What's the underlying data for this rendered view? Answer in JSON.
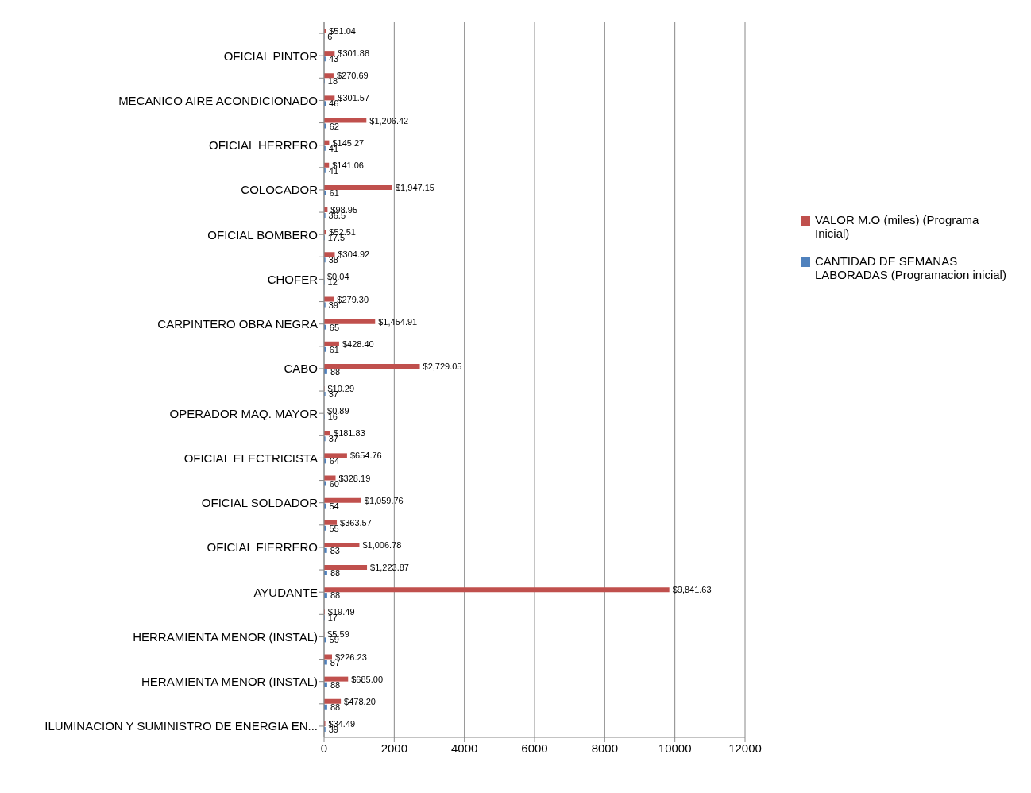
{
  "chart_data": {
    "type": "bar",
    "orientation": "horizontal",
    "categories": [
      null,
      "OFICIAL PINTOR",
      null,
      "MECANICO AIRE ACONDICIONADO",
      null,
      "OFICIAL HERRERO",
      null,
      "COLOCADOR",
      null,
      "OFICIAL BOMBERO",
      null,
      "CHOFER",
      null,
      "CARPINTERO OBRA NEGRA",
      null,
      "CABO",
      null,
      "OPERADOR MAQ. MAYOR",
      null,
      "OFICIAL ELECTRICISTA",
      null,
      "OFICIAL SOLDADOR",
      null,
      "OFICIAL FIERRERO",
      null,
      "AYUDANTE",
      null,
      "HERRAMIENTA MENOR (INSTAL)",
      null,
      "HERAMIENTA MENOR (INSTAL)",
      null,
      "ILUMINACION Y SUMINISTRO DE ENERGIA EN..."
    ],
    "series": [
      {
        "name": "VALOR M.O (miles) (Programa Inicial)",
        "color": "#c0504d",
        "values": [
          51.04,
          301.88,
          270.69,
          301.57,
          1206.42,
          145.27,
          141.06,
          1947.15,
          98.95,
          52.51,
          304.92,
          0.04,
          279.3,
          1454.91,
          428.4,
          2729.05,
          10.29,
          0.89,
          181.83,
          654.76,
          328.19,
          1059.76,
          363.57,
          1006.78,
          1223.87,
          9841.63,
          19.49,
          5.59,
          226.23,
          685.0,
          478.2,
          34.49
        ],
        "value_labels": [
          "$51.04",
          "$301.88",
          "$270.69",
          "$301.57",
          "$1,206.42",
          "$145.27",
          "$141.06",
          "$1,947.15",
          "$98.95",
          "$52.51",
          "$304.92",
          "$0.04",
          "$279.30",
          "$1,454.91",
          "$428.40",
          "$2,729.05",
          "$10.29",
          "$0.89",
          "$181.83",
          "$654.76",
          "$328.19",
          "$1,059.76",
          "$363.57",
          "$1,006.78",
          "$1,223.87",
          "$9,841.63",
          "$19.49",
          "$5.59",
          "$226.23",
          "$685.00",
          "$478.20",
          "$34.49"
        ]
      },
      {
        "name": "CANTIDAD DE SEMANAS LABORADAS (Programacion inicial)",
        "color": "#4f81bd",
        "values": [
          6,
          43,
          18,
          46,
          62,
          41,
          41,
          61,
          36.5,
          17.5,
          38,
          12,
          39,
          65,
          61,
          88,
          37,
          16,
          37,
          64,
          60,
          54,
          55,
          83,
          88,
          88,
          17,
          59,
          87,
          88,
          88,
          39
        ],
        "value_labels": [
          "6",
          "43",
          "18",
          "46",
          "62",
          "41",
          "41",
          "61",
          "36.5",
          "17.5",
          "38",
          "12",
          "39",
          "65",
          "61",
          "88",
          "37",
          "16",
          "37",
          "64",
          "60",
          "54",
          "55",
          "83",
          "88",
          "88",
          "17",
          "59",
          "87",
          "88",
          "88",
          "39"
        ]
      }
    ],
    "xlim": [
      0,
      12000
    ],
    "xticks": [
      0,
      2000,
      4000,
      6000,
      8000,
      10000,
      12000
    ],
    "grid": "x",
    "legend": "right"
  }
}
